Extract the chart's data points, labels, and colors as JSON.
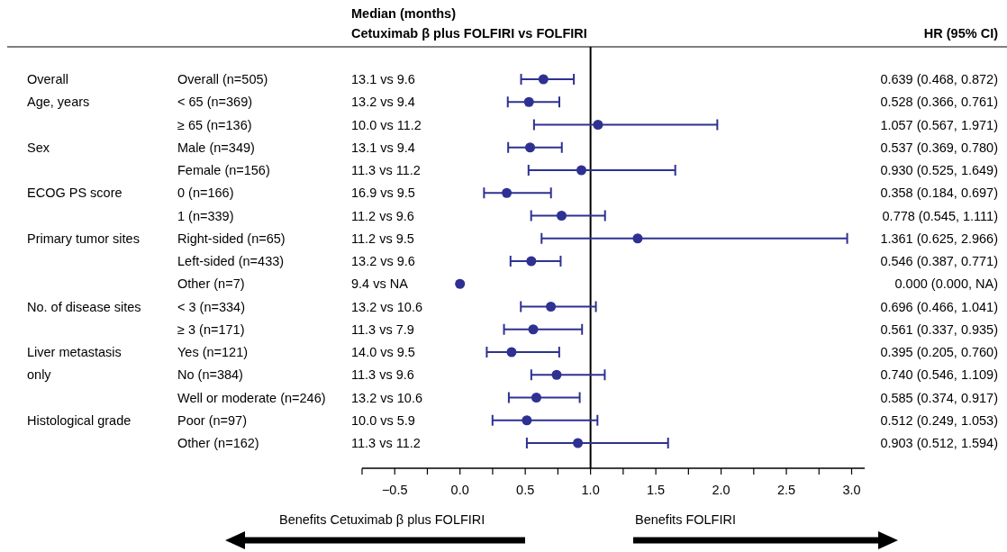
{
  "chart_data": {
    "type": "scatter",
    "orientation": "horizontal",
    "marker": "circle",
    "color": "#2e3192",
    "categories": [
      "Overall (n=505)",
      "< 65 (n=369)",
      "≥ 65 (n=136)",
      "Male (n=349)",
      "Female (n=156)",
      "0 (n=166)",
      "1 (n=339)",
      "Right-sided (n=65)",
      "Left-sided (n=433)",
      "Other (n=7)",
      "< 3 (n=334)",
      "≥ 3 (n=171)",
      "Yes (n=121)",
      "No (n=384)",
      "Well or moderate (n=246)",
      "Poor (n=97)",
      "Other (n=162)"
    ],
    "values": [
      0.639,
      0.528,
      1.057,
      0.537,
      0.93,
      0.358,
      0.778,
      1.361,
      0.546,
      0.0,
      0.696,
      0.561,
      0.395,
      0.74,
      0.585,
      0.512,
      0.903
    ],
    "errors": [
      [
        0.468,
        0.872
      ],
      [
        0.366,
        0.761
      ],
      [
        0.567,
        1.971
      ],
      [
        0.369,
        0.78
      ],
      [
        0.525,
        1.649
      ],
      [
        0.184,
        0.697
      ],
      [
        0.545,
        1.111
      ],
      [
        0.625,
        2.966
      ],
      [
        0.387,
        0.771
      ],
      null,
      [
        0.466,
        1.041
      ],
      [
        0.337,
        0.935
      ],
      [
        0.205,
        0.76
      ],
      [
        0.546,
        1.109
      ],
      [
        0.374,
        0.917
      ],
      [
        0.249,
        1.053
      ],
      [
        0.512,
        1.594
      ]
    ],
    "value_labels": [
      "0.639 (0.468, 0.872)",
      "0.528 (0.366, 0.761)",
      "1.057 (0.567, 1.971)",
      "0.537 (0.369, 0.780)",
      "0.930 (0.525, 1.649)",
      "0.358 (0.184, 0.697)",
      "0.778 (0.545, 1.111)",
      "1.361 (0.625, 2.966)",
      "0.546 (0.387, 0.771)",
      "0.000 (0.000, NA)",
      "0.696 (0.466, 1.041)",
      "0.561 (0.337, 0.935)",
      "0.395 (0.205, 0.760)",
      "0.740 (0.546, 1.109)",
      "0.585 (0.374, 0.917)",
      "0.512 (0.249, 1.053)",
      "0.903 (0.512, 1.594)"
    ],
    "xlim": [
      -0.75,
      3.1
    ],
    "xticks": [
      {
        "value": -0.75,
        "label": null
      },
      {
        "value": -0.5,
        "label": "−0.5"
      },
      {
        "value": -0.25,
        "label": null
      },
      {
        "value": 0,
        "label": "0.0"
      },
      {
        "value": 0.25,
        "label": null
      },
      {
        "value": 0.5,
        "label": "0.5"
      },
      {
        "value": 0.75,
        "label": null
      },
      {
        "value": 1,
        "label": "1.0"
      },
      {
        "value": 1.25,
        "label": null
      },
      {
        "value": 1.5,
        "label": "1.5"
      },
      {
        "value": 1.75,
        "label": null
      },
      {
        "value": 2,
        "label": "2.0"
      },
      {
        "value": 2.25,
        "label": null
      },
      {
        "value": 2.5,
        "label": "2.5"
      },
      {
        "value": 2.75,
        "label": null
      },
      {
        "value": 3,
        "label": "3.0"
      }
    ],
    "ref_lines": [
      {
        "axis": "x",
        "value": 1,
        "color": "#000000"
      }
    ],
    "grid": false,
    "annotations": [
      "Median (months)",
      "Cetuximab β plus FOLFIRI vs FOLFIRI",
      "HR (95% CI)",
      "Benefits Cetuximab β plus FOLFIRI",
      "Benefits FOLFIRI",
      "13.1 vs 9.6",
      "13.2 vs 9.4",
      "10.0 vs 11.2",
      "13.1 vs 9.4",
      "11.3 vs 11.2",
      "16.9 vs 9.5",
      "11.2 vs 9.6",
      "11.2 vs 9.5",
      "13.2 vs 9.6",
      "9.4 vs NA",
      "13.2 vs 10.6",
      "11.3 vs 7.9",
      "14.0 vs 9.5",
      "11.3 vs 9.6",
      "13.2 vs 10.6",
      "10.0 vs 5.9",
      "11.3 vs 11.2",
      "Overall",
      "Age, years",
      "Sex",
      "ECOG PS score",
      "Primary tumor sites",
      "No. of disease sites",
      "Liver metastasis",
      "only",
      "Histological grade"
    ]
  }
}
